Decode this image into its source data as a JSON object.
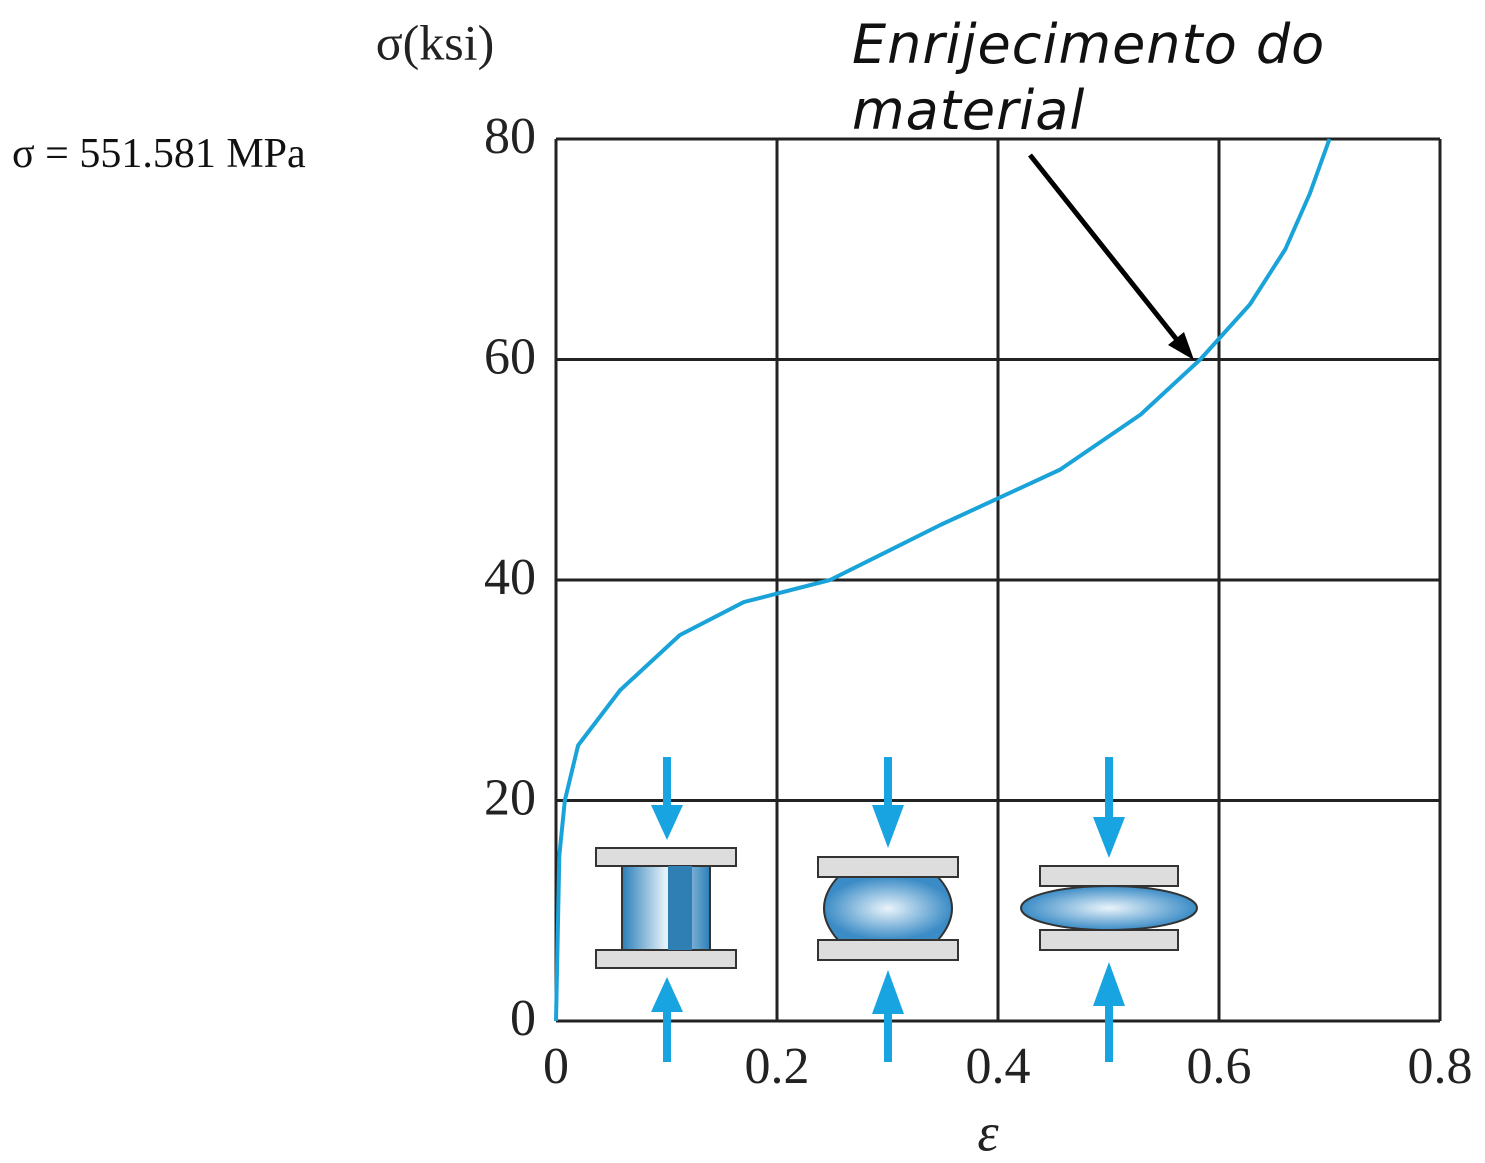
{
  "chart_data": {
    "type": "line",
    "y_label": "σ(ksi)",
    "x_label": "ε",
    "annotation": "Enrijecimento do material",
    "side_note": "σ = 551.581 MPa",
    "series": [
      {
        "name": null,
        "color": "#1aa3d9",
        "x": [
          0,
          0.003,
          0.008,
          0.02,
          0.058,
          0.112,
          0.17,
          0.248,
          0.348,
          0.456,
          0.529,
          0.583,
          0.628,
          0.66,
          0.682,
          0.7
        ],
        "values": [
          0,
          15,
          20,
          25,
          30,
          35,
          38,
          40,
          45,
          50,
          55,
          60,
          65,
          70,
          75,
          80
        ]
      }
    ],
    "xlim": [
      0,
      0.8
    ],
    "xticks": [
      0,
      0.2,
      0.4,
      0.6,
      0.8
    ],
    "ylim": [
      0,
      80
    ],
    "yticks": [
      0,
      20,
      40,
      60,
      80
    ],
    "grid": true
  }
}
